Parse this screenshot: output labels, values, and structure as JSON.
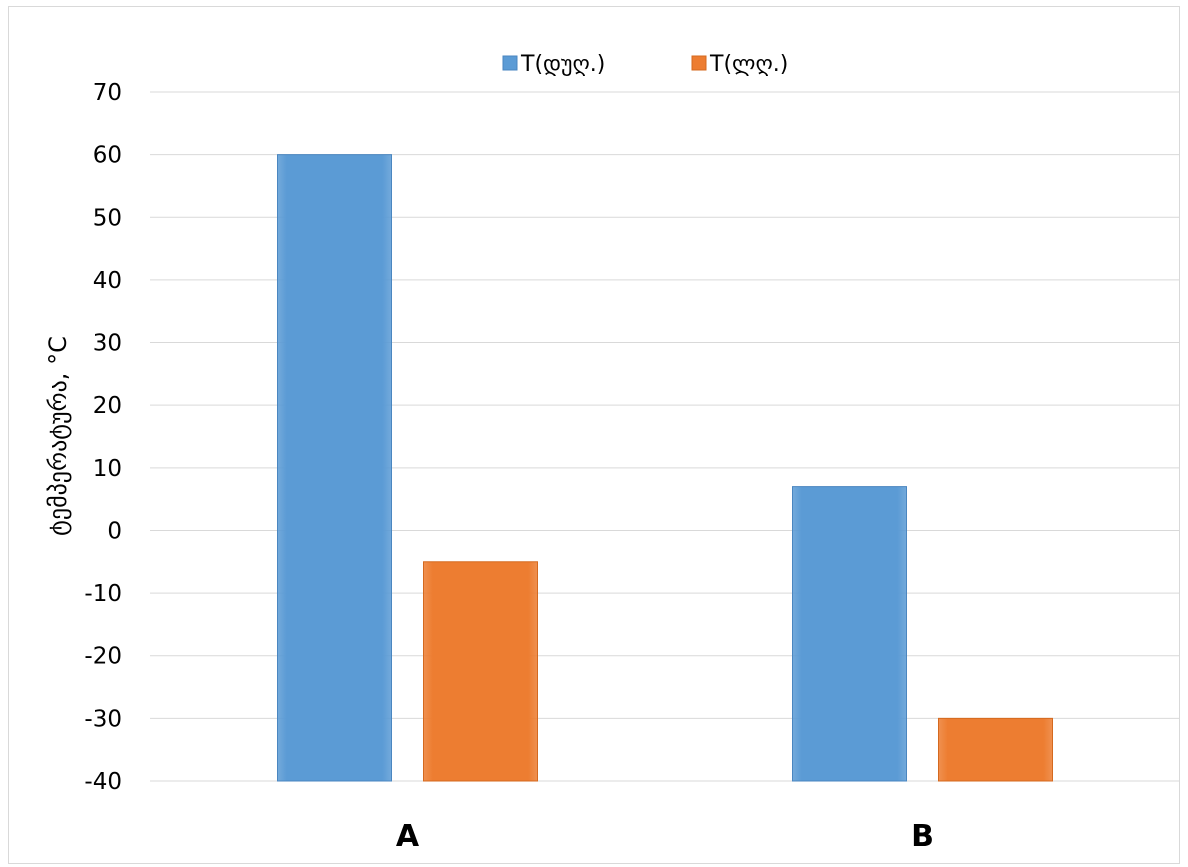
{
  "chart_data": {
    "type": "bar",
    "title": "",
    "xlabel": "",
    "ylabel": "ტემპერატურა, °C",
    "categories": [
      "A",
      "B"
    ],
    "series": [
      {
        "name": "T(დუღ.)",
        "color": "#5b9bd5",
        "values": [
          60,
          7
        ]
      },
      {
        "name": "T(ლღ.)",
        "color": "#ed7d31",
        "values": [
          -5,
          -30
        ]
      }
    ],
    "ylim": [
      -40,
      70
    ],
    "yticks": [
      70,
      60,
      50,
      40,
      30,
      20,
      10,
      0,
      -10,
      -20,
      -30,
      -40
    ],
    "grid": true,
    "legend_position": "top-center"
  }
}
